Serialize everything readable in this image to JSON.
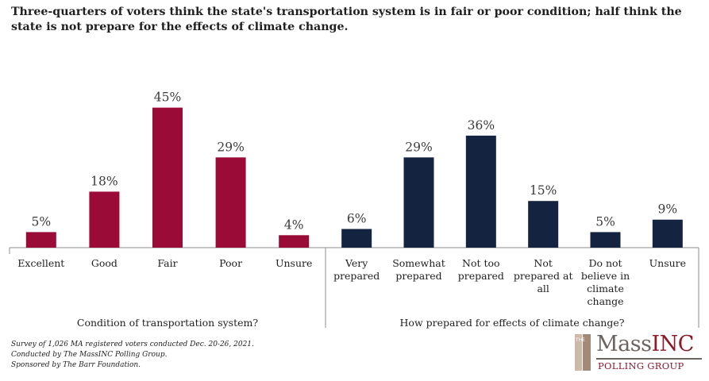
{
  "title": "Three-quarters of voters think the state's transportation system is in fair or poor condition; half think the state is not prepare for the effects of climate change.",
  "colors": {
    "transportation": "#9b0b37",
    "climate": "#142440",
    "axis": "#8c8c8c",
    "text": "#3b3b3b"
  },
  "chart_data": [
    {
      "type": "bar",
      "xlabel": "Condition of transportation system?",
      "categories": [
        [
          "Excellent"
        ],
        [
          "Good"
        ],
        [
          "Fair"
        ],
        [
          "Poor"
        ],
        [
          "Unsure"
        ]
      ],
      "values": [
        5,
        18,
        45,
        29,
        4
      ],
      "value_labels": [
        "5%",
        "18%",
        "45%",
        "29%",
        "4%"
      ],
      "unit": "%",
      "ylim": [
        0,
        50
      ],
      "color": "#9b0b37",
      "grid": false
    },
    {
      "type": "bar",
      "xlabel": "How prepared for effects of climate change?",
      "categories": [
        [
          "Very",
          "prepared"
        ],
        [
          "Somewhat",
          "prepared"
        ],
        [
          "Not too",
          "prepared"
        ],
        [
          "Not",
          "prepared at",
          "all"
        ],
        [
          "Do not",
          "believe in",
          "climate",
          "change"
        ],
        [
          "Unsure"
        ]
      ],
      "values": [
        6,
        29,
        36,
        15,
        5,
        9
      ],
      "value_labels": [
        "6%",
        "29%",
        "36%",
        "15%",
        "5%",
        "9%"
      ],
      "unit": "%",
      "ylim": [
        0,
        50
      ],
      "color": "#142440",
      "grid": false
    }
  ],
  "footnotes": [
    "Survey of 1,026 MA registered voters conducted Dec. 20-26, 2021.",
    "Conducted by The MassINC Polling Group.",
    "Sponsored by The Barr Foundation."
  ],
  "logo": {
    "the": "THE",
    "brand_mass": "Mass",
    "brand_inc": "INC",
    "subtitle": "POLLING GROUP"
  }
}
